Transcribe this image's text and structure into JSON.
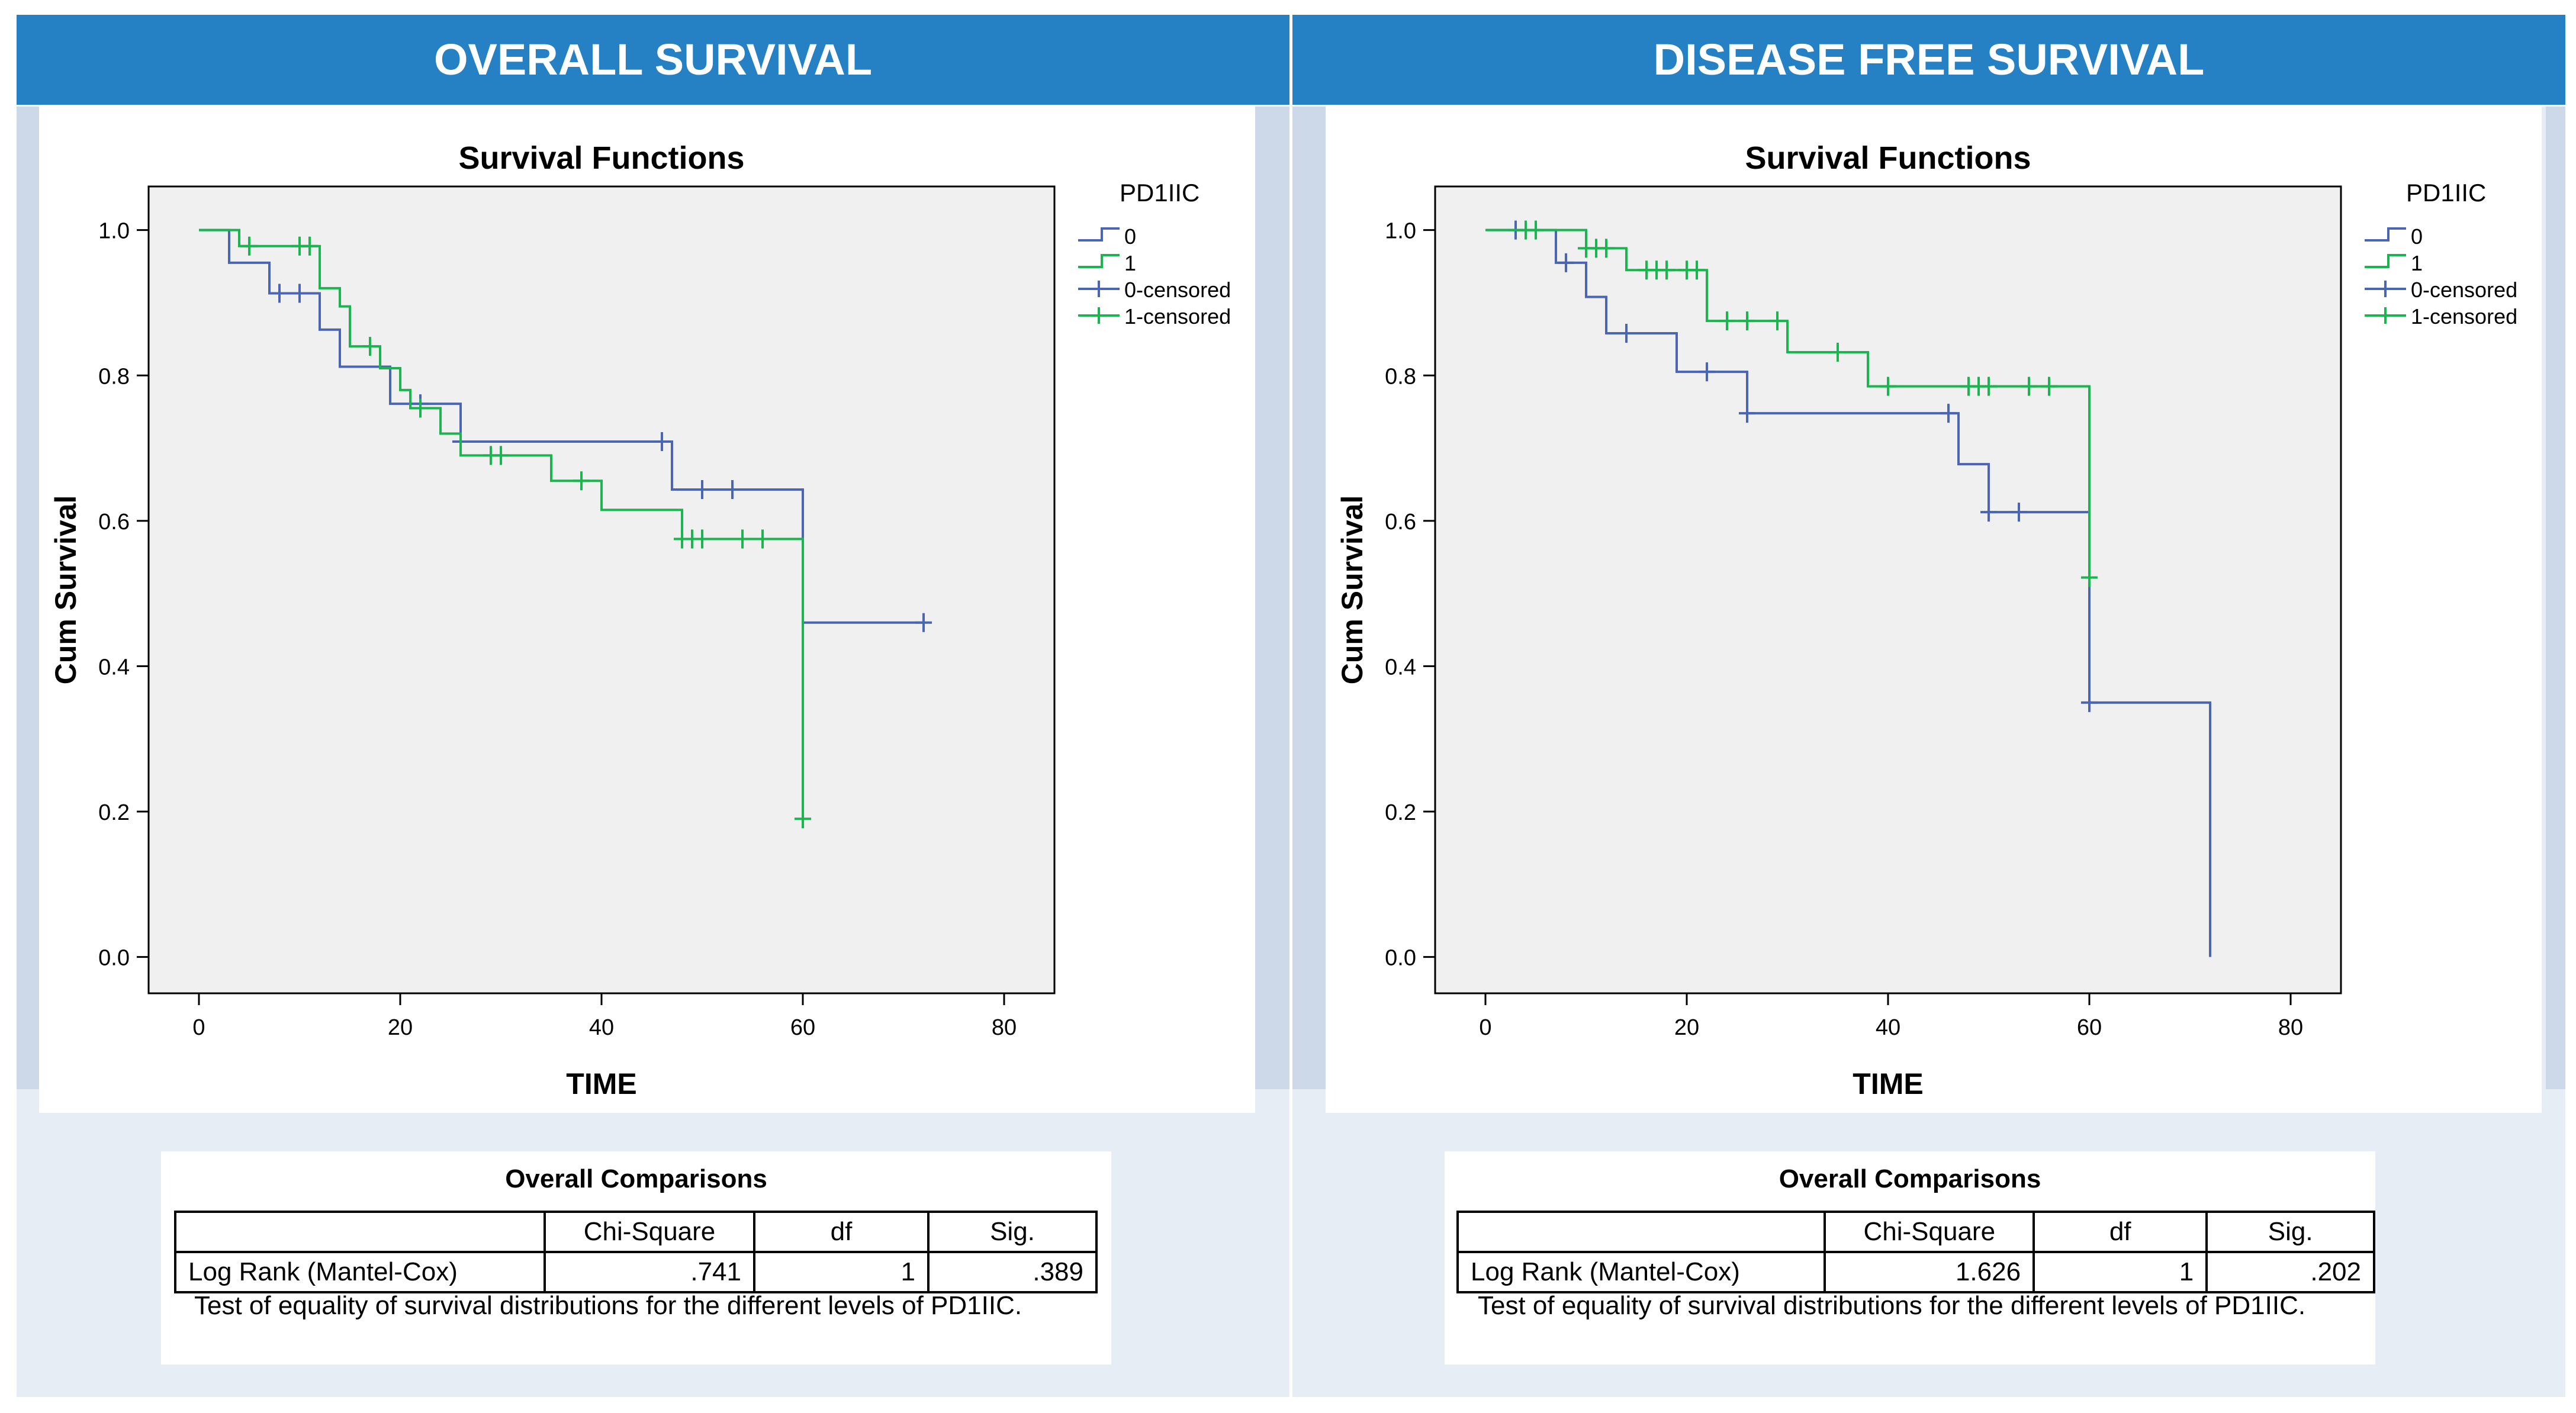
{
  "panels": [
    {
      "header": "OVERALL SURVIVAL",
      "chart_data": {
        "type": "line",
        "title": "Survival Functions",
        "xlabel": "TIME",
        "ylabel": "Cum Survival",
        "xlim": [
          -5,
          85
        ],
        "ylim": [
          -0.05,
          1.06
        ],
        "xticks": [
          0,
          20,
          40,
          60,
          80
        ],
        "yticks": [
          0.0,
          0.2,
          0.4,
          0.6,
          0.8,
          1.0
        ],
        "ytick_labels": [
          "0.0",
          "0.2",
          "0.4",
          "0.6",
          "0.8",
          "1.0"
        ],
        "legend_title": "PD1IIC",
        "legend": [
          "0",
          "1",
          "0-censored",
          "1-censored"
        ],
        "series": [
          {
            "name": "0",
            "color": "#4a65b3",
            "steps": [
              [
                0,
                1.0
              ],
              [
                3,
                0.955
              ],
              [
                7,
                0.913
              ],
              [
                12,
                0.863
              ],
              [
                14,
                0.812
              ],
              [
                19,
                0.761
              ],
              [
                26,
                0.709
              ],
              [
                47,
                0.643
              ],
              [
                60,
                0.46
              ],
              [
                72,
                0.46
              ]
            ],
            "censored": [
              [
                8,
                0.913
              ],
              [
                10,
                0.913
              ],
              [
                22,
                0.761
              ],
              [
                26,
                0.709
              ],
              [
                46,
                0.709
              ],
              [
                50,
                0.643
              ],
              [
                53,
                0.643
              ],
              [
                72,
                0.46
              ]
            ]
          },
          {
            "name": "1",
            "color": "#1ab54f",
            "steps": [
              [
                0,
                1.0
              ],
              [
                4,
                0.978
              ],
              [
                12,
                0.92
              ],
              [
                14,
                0.895
              ],
              [
                15,
                0.84
              ],
              [
                18,
                0.81
              ],
              [
                20,
                0.78
              ],
              [
                21,
                0.755
              ],
              [
                24,
                0.72
              ],
              [
                26,
                0.69
              ],
              [
                35,
                0.655
              ],
              [
                40,
                0.615
              ],
              [
                48,
                0.575
              ],
              [
                60,
                0.19
              ]
            ],
            "censored": [
              [
                5,
                0.978
              ],
              [
                10,
                0.978
              ],
              [
                11,
                0.978
              ],
              [
                17,
                0.84
              ],
              [
                22,
                0.755
              ],
              [
                29,
                0.69
              ],
              [
                30,
                0.69
              ],
              [
                38,
                0.655
              ],
              [
                48,
                0.575
              ],
              [
                49,
                0.575
              ],
              [
                50,
                0.575
              ],
              [
                54,
                0.575
              ],
              [
                56,
                0.575
              ],
              [
                60,
                0.19
              ]
            ]
          }
        ]
      },
      "comparison": {
        "title": "Overall Comparisons",
        "columns": [
          "Chi-Square",
          "df",
          "Sig."
        ],
        "row_label": "Log Rank (Mantel-Cox)",
        "values": [
          ".741",
          "1",
          ".389"
        ],
        "note": "Test of equality of survival distributions for the different levels of PD1IIC."
      }
    },
    {
      "header": "DISEASE FREE SURVIVAL",
      "chart_data": {
        "type": "line",
        "title": "Survival Functions",
        "xlabel": "TIME",
        "ylabel": "Cum Survival",
        "xlim": [
          -5,
          85
        ],
        "ylim": [
          -0.05,
          1.06
        ],
        "xticks": [
          0,
          20,
          40,
          60,
          80
        ],
        "yticks": [
          0.0,
          0.2,
          0.4,
          0.6,
          0.8,
          1.0
        ],
        "ytick_labels": [
          "0.0",
          "0.2",
          "0.4",
          "0.6",
          "0.8",
          "1.0"
        ],
        "legend_title": "PD1IIC",
        "legend": [
          "0",
          "1",
          "0-censored",
          "1-censored"
        ],
        "series": [
          {
            "name": "0",
            "color": "#4a65b3",
            "steps": [
              [
                0,
                1.0
              ],
              [
                7,
                0.955
              ],
              [
                10,
                0.908
              ],
              [
                12,
                0.858
              ],
              [
                19,
                0.805
              ],
              [
                26,
                0.748
              ],
              [
                47,
                0.678
              ],
              [
                50,
                0.612
              ],
              [
                60,
                0.35
              ],
              [
                72,
                0.0
              ]
            ],
            "censored": [
              [
                3,
                1.0
              ],
              [
                8,
                0.955
              ],
              [
                14,
                0.858
              ],
              [
                22,
                0.805
              ],
              [
                26,
                0.748
              ],
              [
                46,
                0.748
              ],
              [
                50,
                0.612
              ],
              [
                53,
                0.612
              ],
              [
                60,
                0.35
              ]
            ]
          },
          {
            "name": "1",
            "color": "#1ab54f",
            "steps": [
              [
                0,
                1.0
              ],
              [
                10,
                0.975
              ],
              [
                14,
                0.945
              ],
              [
                22,
                0.875
              ],
              [
                30,
                0.832
              ],
              [
                38,
                0.785
              ],
              [
                60,
                0.522
              ]
            ],
            "censored": [
              [
                4,
                1.0
              ],
              [
                5,
                1.0
              ],
              [
                10,
                0.975
              ],
              [
                11,
                0.975
              ],
              [
                12,
                0.975
              ],
              [
                16,
                0.945
              ],
              [
                17,
                0.945
              ],
              [
                18,
                0.945
              ],
              [
                20,
                0.945
              ],
              [
                21,
                0.945
              ],
              [
                24,
                0.875
              ],
              [
                26,
                0.875
              ],
              [
                29,
                0.875
              ],
              [
                35,
                0.832
              ],
              [
                40,
                0.785
              ],
              [
                48,
                0.785
              ],
              [
                49,
                0.785
              ],
              [
                50,
                0.785
              ],
              [
                54,
                0.785
              ],
              [
                56,
                0.785
              ],
              [
                60,
                0.522
              ]
            ]
          }
        ]
      },
      "comparison": {
        "title": "Overall Comparisons",
        "columns": [
          "Chi-Square",
          "df",
          "Sig."
        ],
        "row_label": "Log Rank (Mantel-Cox)",
        "values": [
          "1.626",
          "1",
          ".202"
        ],
        "note": "Test of equality of survival distributions for the different levels of PD1IIC."
      }
    }
  ]
}
